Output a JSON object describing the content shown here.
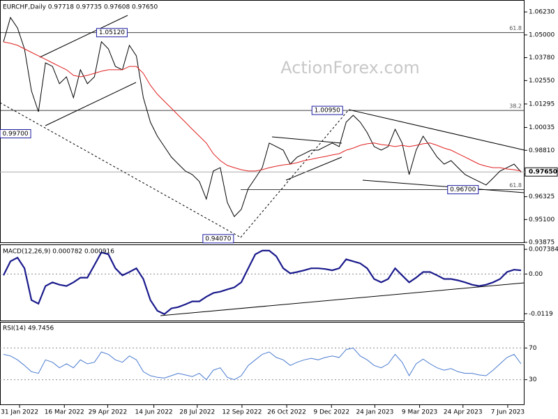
{
  "chart_data": [
    {
      "type": "line",
      "title": "EURCHF,Daily  0.97718 0.97735 0.97608 0.97650",
      "watermark": "ActionForex.com",
      "xlim": [
        0,
        375
      ],
      "x": [
        2.5,
        7.5,
        12.5,
        17.5,
        22.5,
        27.5,
        32.5,
        37.5,
        42.5,
        47.5,
        52.5,
        57.5,
        62.5,
        67.5,
        72.5,
        77.5,
        82.5,
        87.5,
        92.5,
        97.5,
        102.5,
        107.5,
        112.5,
        117.5,
        122.5,
        127.5,
        132.5,
        137.5,
        142.5,
        147.5,
        152.5,
        157.5,
        162.5,
        167.5,
        172.5,
        177.5,
        182.5,
        187.5,
        192.5,
        197.5,
        202.5,
        207.5,
        212.5,
        217.5,
        222.5,
        227.5,
        232.5,
        237.5,
        242.5,
        247.5,
        252.5,
        257.5,
        262.5,
        267.5,
        272.5,
        277.5,
        282.5,
        287.5,
        292.5,
        297.5,
        302.5,
        307.5,
        312.5,
        317.5,
        322.5,
        327.5,
        332.5,
        337.5,
        342.5,
        347.5,
        352.5,
        357.5,
        362.5,
        367.5,
        372.5
      ],
      "series": [
        {
          "name": "EURCHF",
          "color": "#000000",
          "values": [
            1.0463,
            1.0593,
            1.0537,
            1.0425,
            1.02,
            1.0088,
            1.035,
            1.0331,
            1.0238,
            1.0275,
            1.0163,
            1.0313,
            1.0238,
            1.0275,
            1.0463,
            1.0425,
            1.0331,
            1.0313,
            1.0444,
            1.0387,
            1.0163,
            1.0032,
            0.9957,
            0.9901,
            0.9845,
            0.9807,
            0.977,
            0.9751,
            0.9714,
            0.962,
            0.977,
            0.9788,
            0.9601,
            0.9526,
            0.9564,
            0.9676,
            0.9732,
            0.9788,
            0.992,
            0.9901,
            0.9882,
            0.9807,
            0.9845,
            0.9863,
            0.9882,
            0.9882,
            0.9901,
            0.992,
            0.9901,
            1.0032,
            1.0069,
            1.0032,
            0.9976,
            0.9901,
            0.9882,
            0.9901,
            0.9994,
            0.992,
            0.9751,
            0.9882,
            0.9957,
            0.9901,
            0.9845,
            0.9807,
            0.9826,
            0.9788,
            0.9751,
            0.9732,
            0.9714,
            0.9695,
            0.9732,
            0.977,
            0.9788,
            0.9807,
            0.9765
          ]
        },
        {
          "name": "MA",
          "color": "#e02020",
          "values": [
            1.0462,
            1.0455,
            1.0444,
            1.0425,
            1.0406,
            1.0388,
            1.0369,
            1.035,
            1.0331,
            1.0313,
            1.0283,
            1.0275,
            1.0283,
            1.0294,
            1.0305,
            1.0313,
            1.0313,
            1.0313,
            1.0331,
            1.0331,
            1.0294,
            1.023,
            1.0182,
            1.0144,
            1.0107,
            1.0069,
            1.0032,
            0.9994,
            0.9957,
            0.992,
            0.9863,
            0.9826,
            0.98,
            0.9788,
            0.9777,
            0.977,
            0.977,
            0.9777,
            0.9788,
            0.9796,
            0.9803,
            0.9807,
            0.9815,
            0.9826,
            0.9833,
            0.9841,
            0.9848,
            0.9856,
            0.9863,
            0.9882,
            0.9893,
            0.9908,
            0.9916,
            0.992,
            0.9912,
            0.9908,
            0.9901,
            0.9908,
            0.9901,
            0.9908,
            0.9916,
            0.992,
            0.9908,
            0.9893,
            0.9882,
            0.9863,
            0.9845,
            0.9826,
            0.9807,
            0.9796,
            0.9788,
            0.9788,
            0.9781,
            0.9777,
            0.977
          ]
        }
      ],
      "ylim": [
        0.9384,
        1.0687
      ],
      "yticks": [
        {
          "value": 1.0623,
          "label": "1.06230"
        },
        {
          "value": 1.05,
          "label": "1.05000"
        },
        {
          "value": 1.0378,
          "label": "1.03780"
        },
        {
          "value": 1.0255,
          "label": "1.02550"
        },
        1.01295,
        1.00035,
        {
          "value": 0.9881,
          "label": "0.98810"
        },
        0.96325,
        {
          "value": 0.951,
          "label": "0.95100"
        },
        0.93875
      ],
      "levels": [
        {
          "value": 1.0512,
          "label": "61.8"
        },
        {
          "value": 1.0095,
          "label": "38.2"
        },
        {
          "value": 0.967,
          "label": "61.8"
        }
      ],
      "markers": [
        {
          "x": 80,
          "value": 1.0512,
          "label": "1.05120"
        },
        {
          "x": 11,
          "value": 0.997,
          "label": "0.99700"
        },
        {
          "x": 156,
          "value": 0.9407,
          "label": "0.94070"
        },
        {
          "x": 234,
          "value": 1.0095,
          "label": "1.00950"
        },
        {
          "x": 331,
          "value": 0.967,
          "label": "0.96700"
        }
      ],
      "last": {
        "value": 0.9765,
        "label": "0.97650"
      }
    },
    {
      "type": "line",
      "title": "MACD(12,26,9) 0.000782 0.000916",
      "xlim": [
        0,
        375
      ],
      "x": [
        2.5,
        7.5,
        12.5,
        17.5,
        22.5,
        27.5,
        32.5,
        37.5,
        42.5,
        47.5,
        52.5,
        57.5,
        62.5,
        67.5,
        72.5,
        77.5,
        82.5,
        87.5,
        92.5,
        97.5,
        102.5,
        107.5,
        112.5,
        117.5,
        122.5,
        127.5,
        132.5,
        137.5,
        142.5,
        147.5,
        152.5,
        157.5,
        162.5,
        167.5,
        172.5,
        177.5,
        182.5,
        187.5,
        192.5,
        197.5,
        202.5,
        207.5,
        212.5,
        217.5,
        222.5,
        227.5,
        232.5,
        237.5,
        242.5,
        247.5,
        252.5,
        257.5,
        262.5,
        267.5,
        272.5,
        277.5,
        282.5,
        287.5,
        292.5,
        297.5,
        302.5,
        307.5,
        312.5,
        317.5,
        322.5,
        327.5,
        332.5,
        337.5,
        342.5,
        347.5,
        352.5,
        357.5,
        362.5,
        367.5,
        372.5
      ],
      "series": [
        {
          "name": "MACD",
          "color": "#1a1a8c",
          "values": [
            -0.0004,
            0.0038,
            0.0049,
            0.0017,
            -0.0078,
            -0.0089,
            -0.0036,
            -0.0025,
            -0.0032,
            -0.0036,
            -0.0025,
            -0.0011,
            -0.0011,
            0.0027,
            0.0065,
            0.0059,
            0.0017,
            -0.0004,
            0.0006,
            0.0017,
            -0.0015,
            -0.0078,
            -0.011,
            -0.012,
            -0.0103,
            -0.0099,
            -0.0091,
            -0.0082,
            -0.0082,
            -0.0068,
            -0.0057,
            -0.0053,
            -0.0046,
            -0.004,
            -0.0025,
            0.0017,
            0.0059,
            0.007,
            0.007,
            0.0053,
            0.0017,
            0.0002,
            0.0006,
            0.0011,
            0.0017,
            0.0017,
            0.0015,
            0.0011,
            0.0017,
            0.0044,
            0.0038,
            0.0032,
            0.0017,
            -0.0015,
            -0.0025,
            -0.0015,
            0.0017,
            -0.0004,
            -0.0025,
            -0.0011,
            0.0006,
            0.0006,
            -0.0004,
            -0.0015,
            -0.0015,
            -0.0019,
            -0.0025,
            -0.0032,
            -0.0036,
            -0.0032,
            -0.0025,
            -0.0015,
            0.0006,
            0.0013,
            0.0011
          ]
        }
      ],
      "ylim": [
        -0.01414,
        0.00865
      ],
      "yticks": [
        0.007384,
        {
          "value": 0,
          "label": "0.00"
        },
        -0.0119
      ],
      "zero_line": true
    },
    {
      "type": "line",
      "title": "RSI(14) 49.7456",
      "xlim": [
        0,
        375
      ],
      "x": [
        2.5,
        7.5,
        12.5,
        17.5,
        22.5,
        27.5,
        32.5,
        37.5,
        42.5,
        47.5,
        52.5,
        57.5,
        62.5,
        67.5,
        72.5,
        77.5,
        82.5,
        87.5,
        92.5,
        97.5,
        102.5,
        107.5,
        112.5,
        117.5,
        122.5,
        127.5,
        132.5,
        137.5,
        142.5,
        147.5,
        152.5,
        157.5,
        162.5,
        167.5,
        172.5,
        177.5,
        182.5,
        187.5,
        192.5,
        197.5,
        202.5,
        207.5,
        212.5,
        217.5,
        222.5,
        227.5,
        232.5,
        237.5,
        242.5,
        247.5,
        252.5,
        257.5,
        262.5,
        267.5,
        272.5,
        277.5,
        282.5,
        287.5,
        292.5,
        297.5,
        302.5,
        307.5,
        312.5,
        317.5,
        322.5,
        327.5,
        332.5,
        337.5,
        342.5,
        347.5,
        352.5,
        357.5,
        362.5,
        367.5,
        372.5
      ],
      "series": [
        {
          "name": "RSI",
          "color": "#4a7bd0",
          "values": [
            62,
            60,
            55,
            48,
            40,
            38,
            55,
            52,
            45,
            50,
            45,
            55,
            50,
            52,
            65,
            62,
            55,
            52,
            60,
            55,
            40,
            35,
            33,
            32,
            35,
            38,
            36,
            34,
            38,
            30,
            42,
            45,
            33,
            30,
            35,
            48,
            55,
            62,
            65,
            58,
            55,
            48,
            52,
            55,
            57,
            55,
            58,
            60,
            58,
            68,
            70,
            60,
            55,
            48,
            45,
            50,
            62,
            52,
            35,
            50,
            56,
            50,
            45,
            42,
            44,
            40,
            38,
            38,
            36,
            35,
            42,
            50,
            58,
            62,
            50
          ]
        }
      ],
      "ylim": [
        -2,
        102
      ],
      "yticks": [
        70,
        30
      ],
      "grid": true,
      "xticks": [
        {
          "value": 14,
          "label": "31 Jan 2022"
        },
        {
          "value": 46,
          "label": "16 Mar 2022"
        },
        {
          "value": 77,
          "label": "29 Apr 2022"
        },
        {
          "value": 110,
          "label": "14 Jun 2022"
        },
        {
          "value": 141,
          "label": "28 Jul 2022"
        },
        {
          "value": 173,
          "label": "12 Sep 2022"
        },
        {
          "value": 205,
          "label": "26 Oct 2022"
        },
        {
          "value": 237,
          "label": "9 Dec 2022"
        },
        {
          "value": 268,
          "label": "24 Jan 2023"
        },
        {
          "value": 300,
          "label": "9 Mar 2023"
        },
        {
          "value": 331,
          "label": "24 Apr 2023"
        },
        {
          "value": 363,
          "label": "7 Jun 2023"
        }
      ]
    }
  ]
}
